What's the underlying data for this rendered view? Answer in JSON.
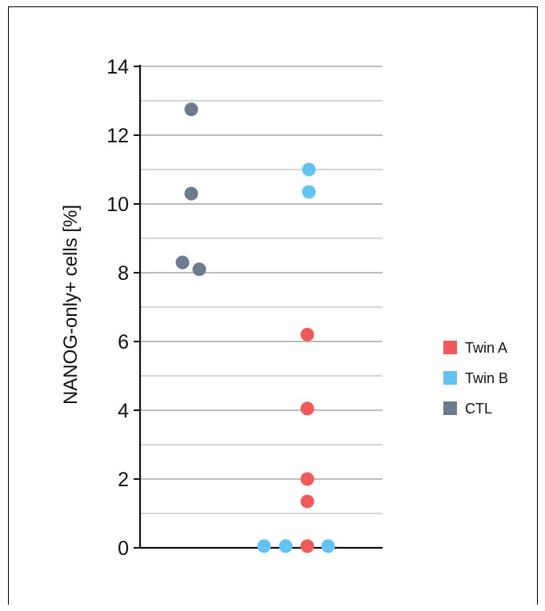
{
  "chart_data": {
    "type": "scatter",
    "title": "",
    "xlabel": "",
    "ylabel": "NANOG-only+ cells [%]",
    "ylim": [
      0,
      14
    ],
    "yticks": [
      0,
      2,
      4,
      6,
      8,
      10,
      12,
      14
    ],
    "y_tick_labels": [
      "0",
      "2",
      "4",
      "6",
      "8",
      "10",
      "12",
      "14"
    ],
    "grid": true,
    "grid_minor": true,
    "legend_position": "right",
    "groups": [
      "CTL",
      "Twin"
    ],
    "series": [
      {
        "name": "Twin A",
        "color": "#f25a5a",
        "points": [
          {
            "group": "Twin",
            "y": 6.2
          },
          {
            "group": "Twin",
            "y": 4.05
          },
          {
            "group": "Twin",
            "y": 2.0
          },
          {
            "group": "Twin",
            "y": 1.35
          },
          {
            "group": "Twin",
            "y": 0.05
          }
        ]
      },
      {
        "name": "Twin B",
        "color": "#62c3f3",
        "points": [
          {
            "group": "Twin",
            "y": 11.0
          },
          {
            "group": "Twin",
            "y": 10.35
          },
          {
            "group": "Twin",
            "y": 0.05
          },
          {
            "group": "Twin",
            "y": 0.05
          },
          {
            "group": "Twin",
            "y": 0.05
          }
        ]
      },
      {
        "name": "CTL",
        "color": "#6c7c8c",
        "points": [
          {
            "group": "CTL",
            "y": 12.75
          },
          {
            "group": "CTL",
            "y": 10.3
          },
          {
            "group": "CTL",
            "y": 8.3
          },
          {
            "group": "CTL",
            "y": 8.1
          }
        ]
      }
    ]
  }
}
